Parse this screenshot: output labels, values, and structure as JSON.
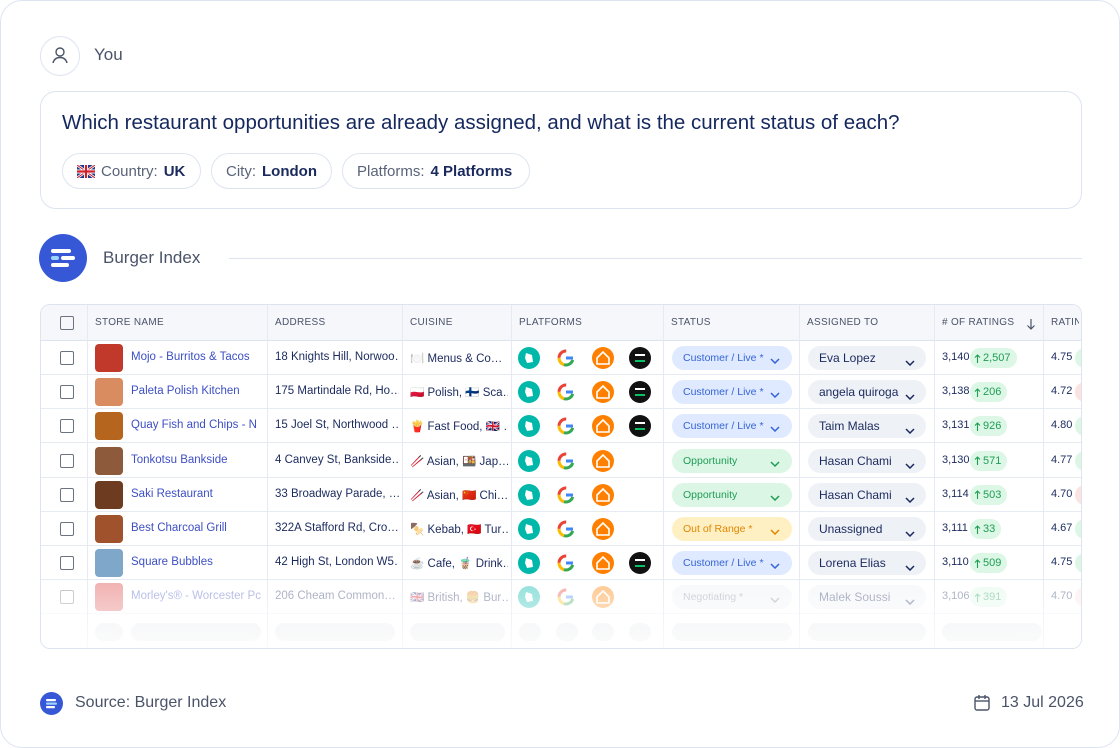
{
  "header": {
    "user": "You"
  },
  "question": {
    "text": "Which restaurant opportunities are already assigned, and what is the current status of each?",
    "filters": [
      {
        "label": "Country:",
        "value": "UK"
      },
      {
        "label": "City:",
        "value": "London"
      },
      {
        "label": "Platforms:",
        "value": "4 Platforms"
      }
    ]
  },
  "source_name": "Burger Index",
  "table": {
    "columns": [
      "STORE NAME",
      "ADDRESS",
      "CUISINE",
      "PLATFORMS",
      "STATUS",
      "ASSIGNED TO",
      "# OF RATINGS",
      "RATING"
    ],
    "rows": [
      {
        "store": "Mojo - Burritos & Tacos",
        "address": "18 Knights Hill, Norwoo…",
        "cuisine": "🍽️ Menus & Co…",
        "uber_eats": true,
        "status": "Customer / Live *",
        "status_color": "blue",
        "assigned": "Eva Lopez",
        "ratings": "3,140",
        "change": "2,507",
        "rating": "4.75"
      },
      {
        "store": "Paleta Polish Kitchen",
        "address": "175 Martindale Rd, Ho…",
        "cuisine": "🇵🇱 Polish, 🇫🇮 Sca…",
        "uber_eats": true,
        "status": "Customer / Live *",
        "status_color": "blue",
        "assigned": "angela quiroga",
        "ratings": "3,138",
        "change": "206",
        "rating": "4.72"
      },
      {
        "store": "Quay Fish and Chips - N",
        "address": "15 Joel St, Northwood …",
        "cuisine": "🍟 Fast Food, 🇬🇧 …",
        "uber_eats": true,
        "status": "Customer / Live *",
        "status_color": "blue",
        "assigned": "Taim Malas",
        "ratings": "3,131",
        "change": "926",
        "rating": "4.80"
      },
      {
        "store": "Tonkotsu Bankside",
        "address": "4 Canvey St, Bankside…",
        "cuisine": "🥢 Asian, 🍱 Jap…",
        "uber_eats": false,
        "status": "Opportunity",
        "status_color": "green",
        "assigned": "Hasan Chami",
        "ratings": "3,130",
        "change": "571",
        "rating": "4.77"
      },
      {
        "store": "Saki Restaurant",
        "address": "33 Broadway Parade, …",
        "cuisine": "🥢 Asian, 🇨🇳 Chi…",
        "uber_eats": false,
        "status": "Opportunity",
        "status_color": "green",
        "assigned": "Hasan Chami",
        "ratings": "3,114",
        "change": "503",
        "rating": "4.70"
      },
      {
        "store": "Best Charcoal Grill",
        "address": "322A Stafford Rd, Cro…",
        "cuisine": "🍢 Kebab, 🇹🇷 Tur…",
        "uber_eats": false,
        "status": "Out of Range *",
        "status_color": "yellow",
        "assigned": "Unassigned",
        "ratings": "3,111",
        "change": "33",
        "rating": "4.67"
      },
      {
        "store": "Square Bubbles",
        "address": "42 High St, London W5…",
        "cuisine": "☕ Cafe, 🧋 Drink…",
        "uber_eats": true,
        "status": "Customer / Live *",
        "status_color": "blue",
        "assigned": "Lorena Elias",
        "ratings": "3,110",
        "change": "509",
        "rating": "4.75"
      },
      {
        "store": "Morley's® - Worcester Pc",
        "address": "206 Cheam Common…",
        "cuisine": "🇬🇧 British, 🍔 Bur…",
        "uber_eats": false,
        "status": "Negotiating *",
        "status_color": "gray",
        "assigned": "Malek Soussi",
        "ratings": "3,106",
        "change": "391",
        "rating": "4.70"
      }
    ]
  },
  "footer": {
    "source": "Source: Burger Index",
    "date": "13 Jul 2026"
  }
}
